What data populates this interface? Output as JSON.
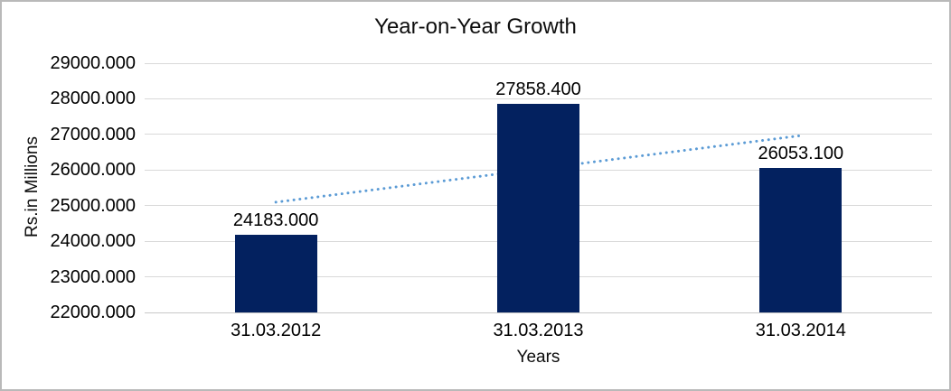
{
  "chart_data": {
    "type": "bar",
    "title": "Year-on-Year Growth",
    "xlabel": "Years",
    "ylabel": "Rs.in Millions",
    "categories": [
      "31.03.2012",
      "31.03.2013",
      "31.03.2014"
    ],
    "values": [
      24183.0,
      27858.4,
      26053.1
    ],
    "value_labels": [
      "24183.000",
      "27858.400",
      "26053.100"
    ],
    "ylim": [
      22000,
      29000
    ],
    "ytick_step": 1000,
    "ytick_labels": [
      "29000.000",
      "28000.000",
      "27000.000",
      "26000.000",
      "25000.000",
      "24000.000",
      "23000.000",
      "22000.000"
    ],
    "grid": true,
    "legend": false,
    "trendline": {
      "type": "linear",
      "style": "dotted",
      "start_value": 25096.45,
      "end_value": 26966.55
    },
    "colors": {
      "bar": "#03215f",
      "trendline": "#5b9bd5",
      "gridline": "#d9d9d9",
      "text": "#000000",
      "frame_border": "#b9b9b9"
    }
  }
}
